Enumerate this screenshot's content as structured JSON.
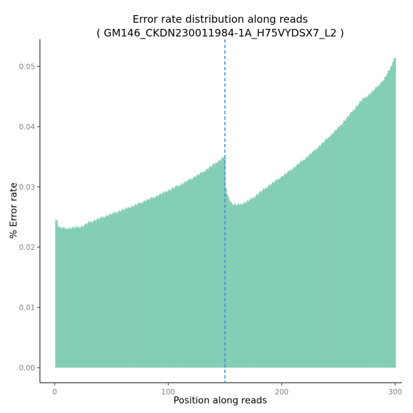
{
  "chart_data": {
    "type": "bar",
    "title": "Error rate distribution along reads",
    "subtitle": "( GM146_CKDN230011984-1A_H75VYDSX7_L2 )",
    "xlabel": "Position along reads",
    "ylabel": "% Error rate",
    "xlim": [
      -13,
      306
    ],
    "ylim": [
      -0.0025,
      0.0545
    ],
    "x_ticks": [
      0,
      100,
      200,
      300
    ],
    "x_tick_labels": [
      "0",
      "100",
      "200",
      "300"
    ],
    "y_ticks": [
      0.0,
      0.01,
      0.02,
      0.03,
      0.04,
      0.05
    ],
    "y_tick_labels": [
      "0.00",
      "0.01",
      "0.02",
      "0.03",
      "0.04",
      "0.05"
    ],
    "grid": false,
    "legend": "none",
    "bar_color": "#66c2a5",
    "bar_opacity": 0.78,
    "vline": {
      "x": 150,
      "color": "#3b8fd9",
      "style": "dashed"
    },
    "profile_points": [
      [
        1,
        0.0246
      ],
      [
        2,
        0.0243
      ],
      [
        3,
        0.0236
      ],
      [
        4,
        0.0233
      ],
      [
        6,
        0.0232
      ],
      [
        10,
        0.0231
      ],
      [
        15,
        0.0232
      ],
      [
        20,
        0.0233
      ],
      [
        25,
        0.0235
      ],
      [
        30,
        0.0241
      ],
      [
        40,
        0.0248
      ],
      [
        50,
        0.0255
      ],
      [
        60,
        0.0262
      ],
      [
        70,
        0.0269
      ],
      [
        80,
        0.0277
      ],
      [
        90,
        0.0285
      ],
      [
        100,
        0.0294
      ],
      [
        110,
        0.0303
      ],
      [
        120,
        0.0313
      ],
      [
        130,
        0.0324
      ],
      [
        140,
        0.0337
      ],
      [
        148,
        0.0348
      ],
      [
        150,
        0.0351
      ],
      [
        151,
        0.0296
      ],
      [
        153,
        0.0283
      ],
      [
        156,
        0.0272
      ],
      [
        160,
        0.027
      ],
      [
        165,
        0.0272
      ],
      [
        170,
        0.0276
      ],
      [
        175,
        0.0282
      ],
      [
        180,
        0.029
      ],
      [
        190,
        0.0304
      ],
      [
        200,
        0.0317
      ],
      [
        210,
        0.0331
      ],
      [
        220,
        0.0346
      ],
      [
        230,
        0.0362
      ],
      [
        240,
        0.038
      ],
      [
        250,
        0.0398
      ],
      [
        260,
        0.042
      ],
      [
        270,
        0.0443
      ],
      [
        280,
        0.0458
      ],
      [
        290,
        0.0478
      ],
      [
        295,
        0.0494
      ],
      [
        298,
        0.0508
      ],
      [
        300,
        0.0516
      ]
    ]
  }
}
